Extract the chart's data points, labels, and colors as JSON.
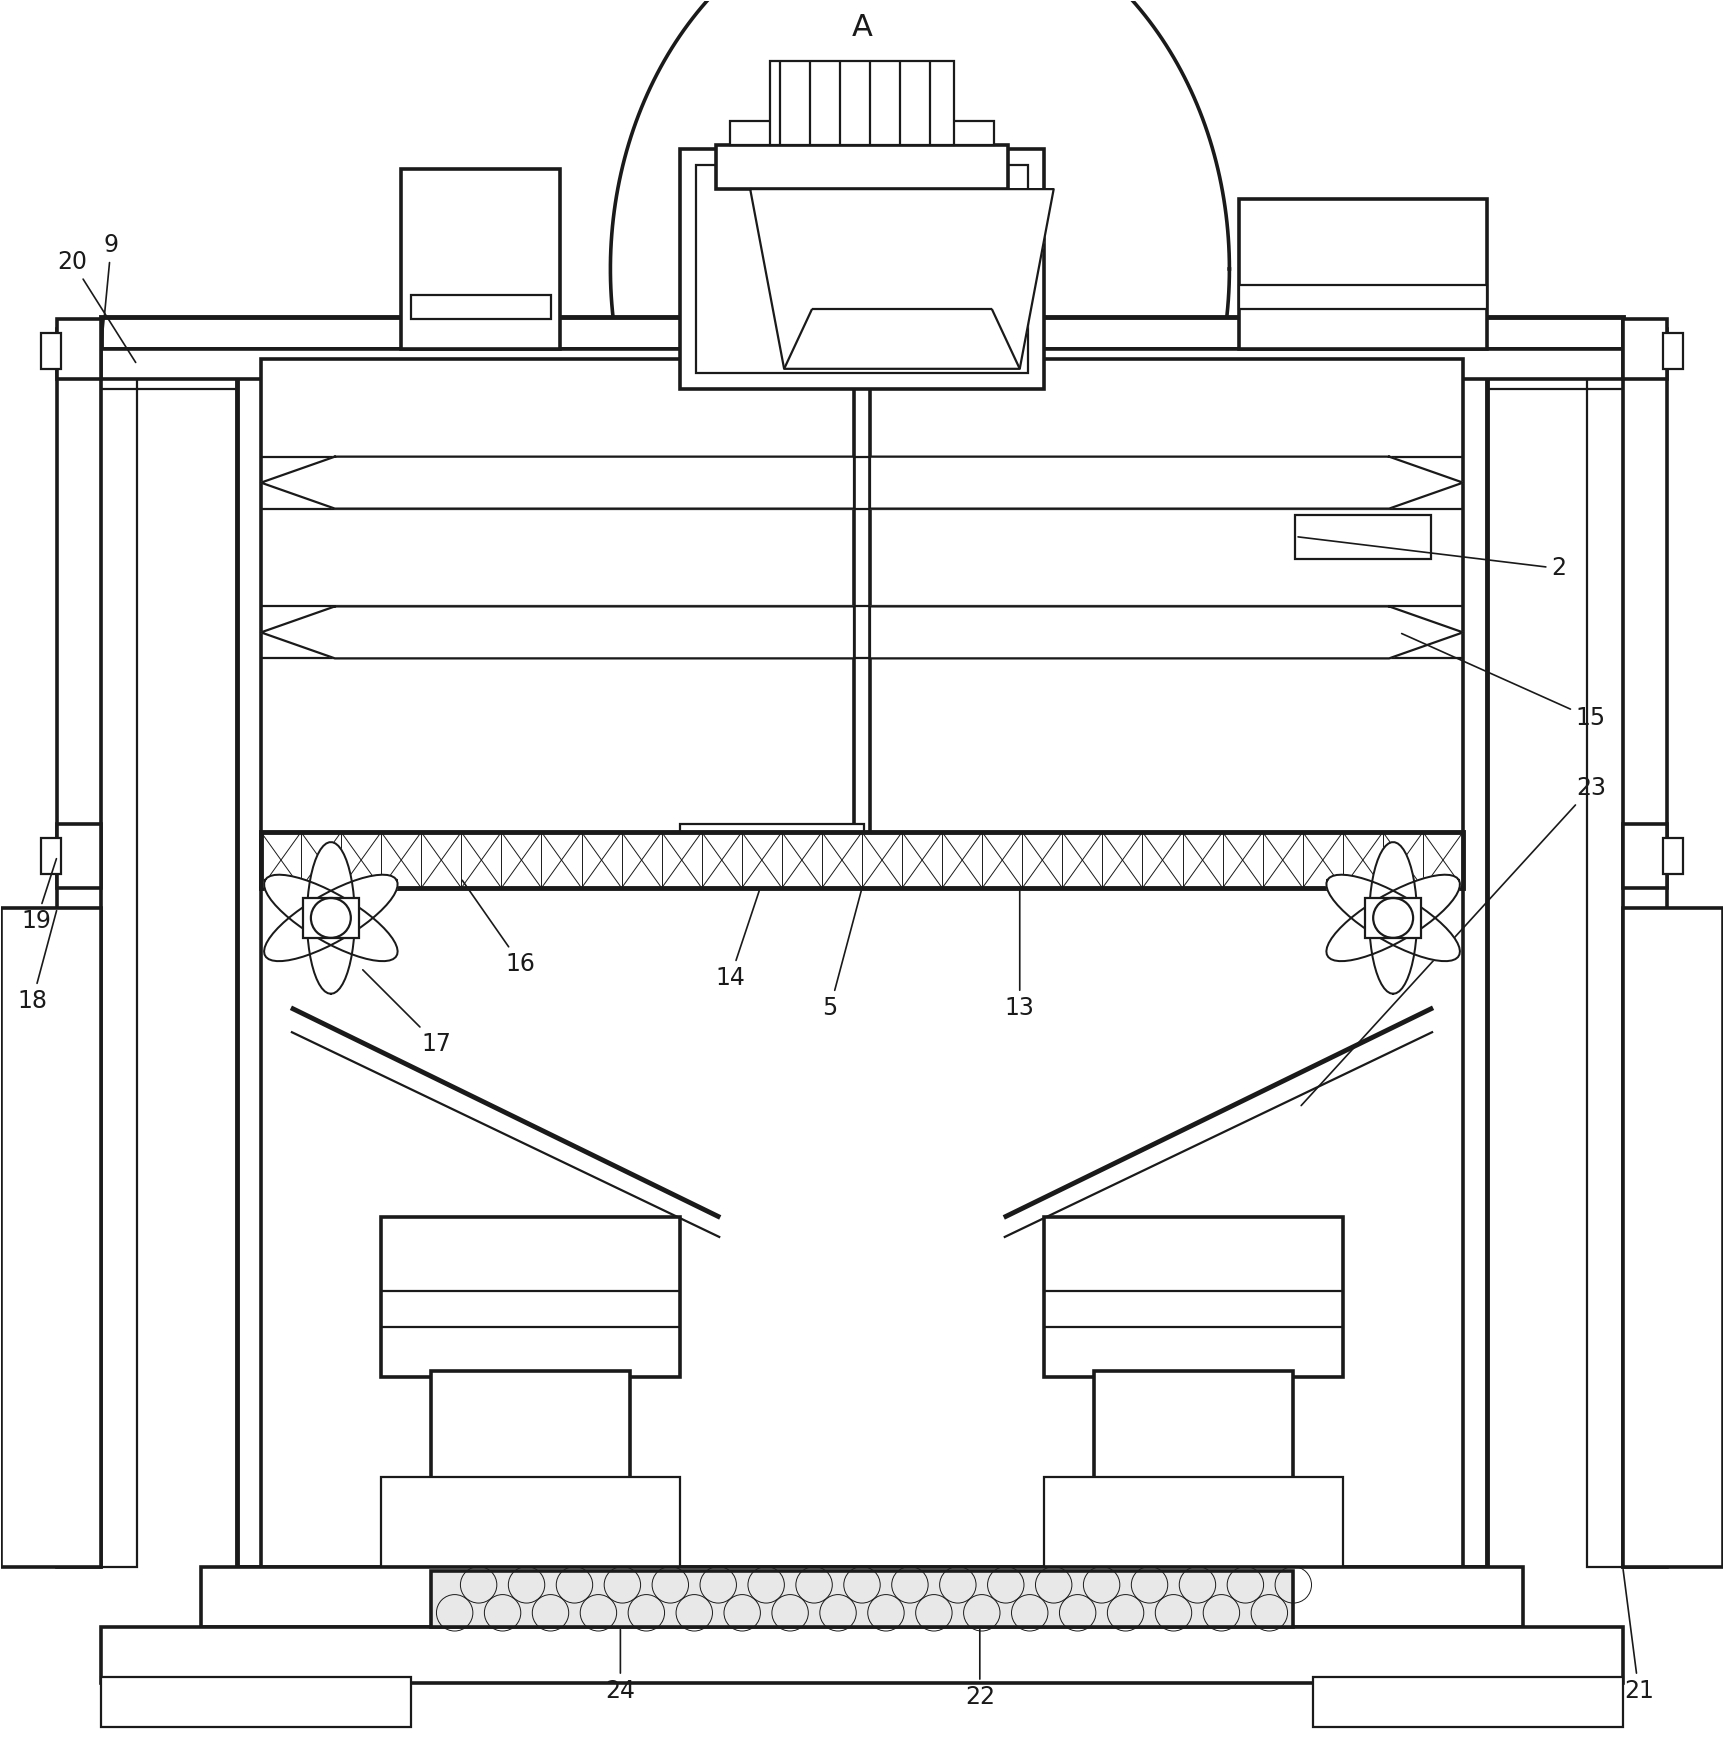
{
  "bg_color": "#ffffff",
  "lc": "#1a1a1a",
  "lw": 1.6,
  "lw2": 2.6,
  "lw3": 3.5,
  "fig_w": 17.24,
  "fig_h": 17.48
}
